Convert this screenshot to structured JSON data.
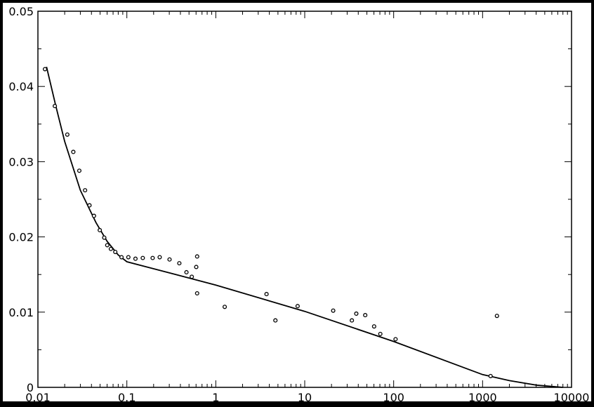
{
  "chart_data": {
    "type": "scatter",
    "xscale": "log",
    "xlim": [
      0.01,
      10000
    ],
    "ylim": [
      0,
      0.05
    ],
    "grid": false,
    "legend": "none",
    "title": "",
    "xlabel": "",
    "ylabel": "",
    "x_ticks": [
      {
        "value": 0.01,
        "label": "0.01"
      },
      {
        "value": 0.1,
        "label": "0.1"
      },
      {
        "value": 1,
        "label": "1"
      },
      {
        "value": 10,
        "label": "10"
      },
      {
        "value": 100,
        "label": "100"
      },
      {
        "value": 1000,
        "label": "1000"
      },
      {
        "value": 10000,
        "label": "10000"
      }
    ],
    "y_ticks": [
      {
        "value": 0,
        "label": "0"
      },
      {
        "value": 0.01,
        "label": "0.01"
      },
      {
        "value": 0.02,
        "label": "0.02"
      },
      {
        "value": 0.03,
        "label": "0.03"
      },
      {
        "value": 0.04,
        "label": "0.04"
      },
      {
        "value": 0.05,
        "label": "0.05"
      }
    ],
    "series": [
      {
        "kind": "points",
        "marker": "open-circle",
        "color": "#000000",
        "points": [
          [
            0.012,
            0.0423
          ],
          [
            0.0155,
            0.0374
          ],
          [
            0.0214,
            0.0336
          ],
          [
            0.025,
            0.0313
          ],
          [
            0.0292,
            0.0288
          ],
          [
            0.0339,
            0.0262
          ],
          [
            0.038,
            0.0242
          ],
          [
            0.0427,
            0.0228
          ],
          [
            0.0496,
            0.0209
          ],
          [
            0.0557,
            0.0199
          ],
          [
            0.0602,
            0.0189
          ],
          [
            0.0661,
            0.0184
          ],
          [
            0.0741,
            0.018
          ],
          [
            0.0871,
            0.0173
          ],
          [
            0.104,
            0.0173
          ],
          [
            0.125,
            0.0171
          ],
          [
            0.151,
            0.0172
          ],
          [
            0.195,
            0.0172
          ],
          [
            0.234,
            0.0173
          ],
          [
            0.302,
            0.017
          ],
          [
            0.389,
            0.0165
          ],
          [
            0.468,
            0.0153
          ],
          [
            0.537,
            0.0147
          ],
          [
            0.603,
            0.016
          ],
          [
            0.617,
            0.0174
          ],
          [
            0.617,
            0.0125
          ],
          [
            1.26,
            0.0107
          ],
          [
            3.72,
            0.0124
          ],
          [
            4.68,
            0.0089
          ],
          [
            8.32,
            0.0108
          ],
          [
            20.9,
            0.0102
          ],
          [
            33.9,
            0.0089
          ],
          [
            38.0,
            0.0098
          ],
          [
            47.9,
            0.0096
          ],
          [
            60.3,
            0.0081
          ],
          [
            70.8,
            0.0071
          ],
          [
            105,
            0.0064
          ],
          [
            1230,
            0.0015
          ],
          [
            1450,
            0.0095
          ]
        ]
      },
      {
        "kind": "line",
        "color": "#000000",
        "points": [
          [
            0.0125,
            0.0426
          ],
          [
            0.0159,
            0.0374
          ],
          [
            0.02,
            0.0327
          ],
          [
            0.03,
            0.0262
          ],
          [
            0.045,
            0.0219
          ],
          [
            0.06,
            0.0194
          ],
          [
            0.08,
            0.0176
          ],
          [
            0.1,
            0.0167
          ],
          [
            1,
            0.0136
          ],
          [
            10,
            0.0101
          ],
          [
            100,
            0.0061
          ],
          [
            1000,
            0.0017
          ],
          [
            2000,
            0.0009
          ],
          [
            4000,
            0.0003
          ],
          [
            8000,
            0.0
          ]
        ]
      }
    ]
  }
}
